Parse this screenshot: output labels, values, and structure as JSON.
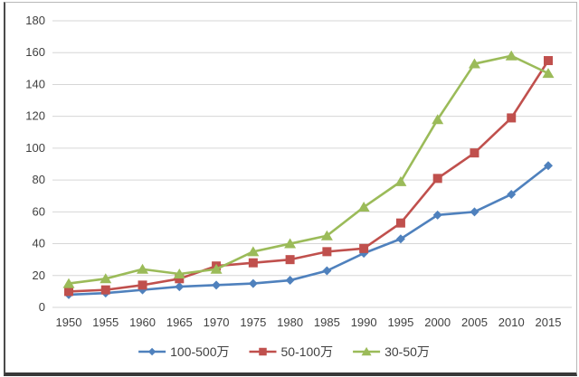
{
  "chart_data": {
    "type": "line",
    "title": "",
    "xlabel": "",
    "ylabel": "",
    "categories": [
      "1950",
      "1955",
      "1960",
      "1965",
      "1970",
      "1975",
      "1980",
      "1985",
      "1990",
      "1995",
      "2000",
      "2005",
      "2010",
      "2015"
    ],
    "series": [
      {
        "name": "100-500万",
        "color": "#4F81BD",
        "marker": "diamond",
        "values": [
          8,
          9,
          11,
          13,
          14,
          15,
          17,
          23,
          34,
          43,
          58,
          60,
          71,
          89
        ]
      },
      {
        "name": "50-100万",
        "color": "#C0504D",
        "marker": "square",
        "values": [
          10,
          11,
          14,
          18,
          26,
          28,
          30,
          35,
          37,
          53,
          81,
          97,
          119,
          155
        ]
      },
      {
        "name": "30-50万",
        "color": "#9BBB59",
        "marker": "triangle",
        "values": [
          15,
          18,
          24,
          21,
          24,
          35,
          40,
          45,
          63,
          79,
          118,
          153,
          158,
          147
        ]
      }
    ],
    "y_axis": {
      "min": 0,
      "max": 180,
      "step": 20,
      "ticks": [
        "0",
        "20",
        "40",
        "60",
        "80",
        "100",
        "120",
        "140",
        "160",
        "180"
      ]
    },
    "grid": "horizontal-only",
    "legend_position": "bottom-center",
    "colors": {
      "text": "#3f3f3f",
      "gridline": "#d6d6d6",
      "background": "#ffffff"
    }
  }
}
